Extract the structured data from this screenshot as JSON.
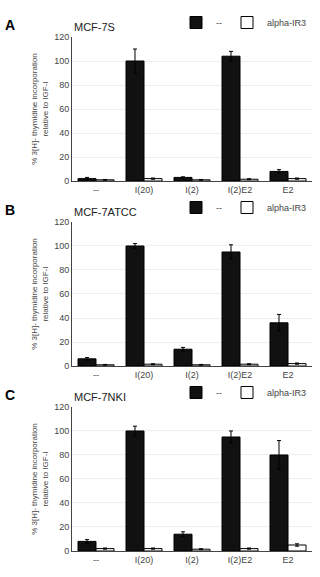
{
  "chart_data": [
    {
      "type": "bar",
      "title": "MCF-7S",
      "annotations": [
        "A"
      ],
      "categories": [
        "--",
        "I(20)",
        "I(2)",
        "I(2)E2",
        "E2"
      ],
      "series": [
        {
          "name": "--",
          "color": "#111111",
          "values": [
            2,
            100,
            3,
            104,
            8
          ],
          "errors": [
            1,
            10,
            0.5,
            4,
            1.5
          ]
        },
        {
          "name": "alpha-IR3",
          "color": "#ffffff",
          "values": [
            1,
            2,
            1,
            1.5,
            2
          ],
          "errors": [
            0.3,
            0.5,
            0.3,
            0.4,
            0.5
          ]
        }
      ],
      "ylabel": "% 3[H]- thymidine incorporation\nrelative to IGF-I",
      "ylim": [
        0,
        120
      ],
      "yticks": [
        0,
        20,
        40,
        60,
        80,
        100,
        120
      ],
      "grid": true,
      "legend": "upper right"
    },
    {
      "type": "bar",
      "title": "MCF-7ATCC",
      "annotations": [
        "B"
      ],
      "categories": [
        "--",
        "I(20)",
        "I(2)",
        "I(2)E2",
        "E2"
      ],
      "series": [
        {
          "name": "--",
          "color": "#111111",
          "values": [
            6,
            100,
            14,
            95,
            36
          ],
          "errors": [
            1,
            2,
            1.5,
            6,
            7
          ]
        },
        {
          "name": "alpha-IR3",
          "color": "#ffffff",
          "values": [
            1,
            1.5,
            1,
            1.5,
            2
          ],
          "errors": [
            0.3,
            0.4,
            0.3,
            0.4,
            0.5
          ]
        }
      ],
      "ylabel": "% 3[H]- thymidine incorporation\nrelative to IGF-I",
      "ylim": [
        0,
        120
      ],
      "yticks": [
        0,
        20,
        40,
        60,
        80,
        100,
        120
      ],
      "grid": true,
      "legend": "upper right"
    },
    {
      "type": "bar",
      "title": "MCF-7NKI",
      "annotations": [
        "C"
      ],
      "categories": [
        "--",
        "I(20)",
        "I(2)",
        "I(2)E2",
        "E2"
      ],
      "series": [
        {
          "name": "--",
          "color": "#111111",
          "values": [
            8,
            100,
            14,
            95,
            80
          ],
          "errors": [
            1.5,
            4,
            2,
            5,
            12
          ]
        },
        {
          "name": "alpha-IR3",
          "color": "#ffffff",
          "values": [
            2,
            2,
            1.5,
            2,
            5
          ],
          "errors": [
            0.5,
            0.5,
            0.4,
            0.5,
            1
          ]
        }
      ],
      "ylabel": "% 3[H]- thymidine incorporation\nrelative to IGF-I",
      "ylim": [
        0,
        120
      ],
      "yticks": [
        0,
        20,
        40,
        60,
        80,
        100,
        120
      ],
      "grid": true,
      "legend": "upper right"
    }
  ]
}
